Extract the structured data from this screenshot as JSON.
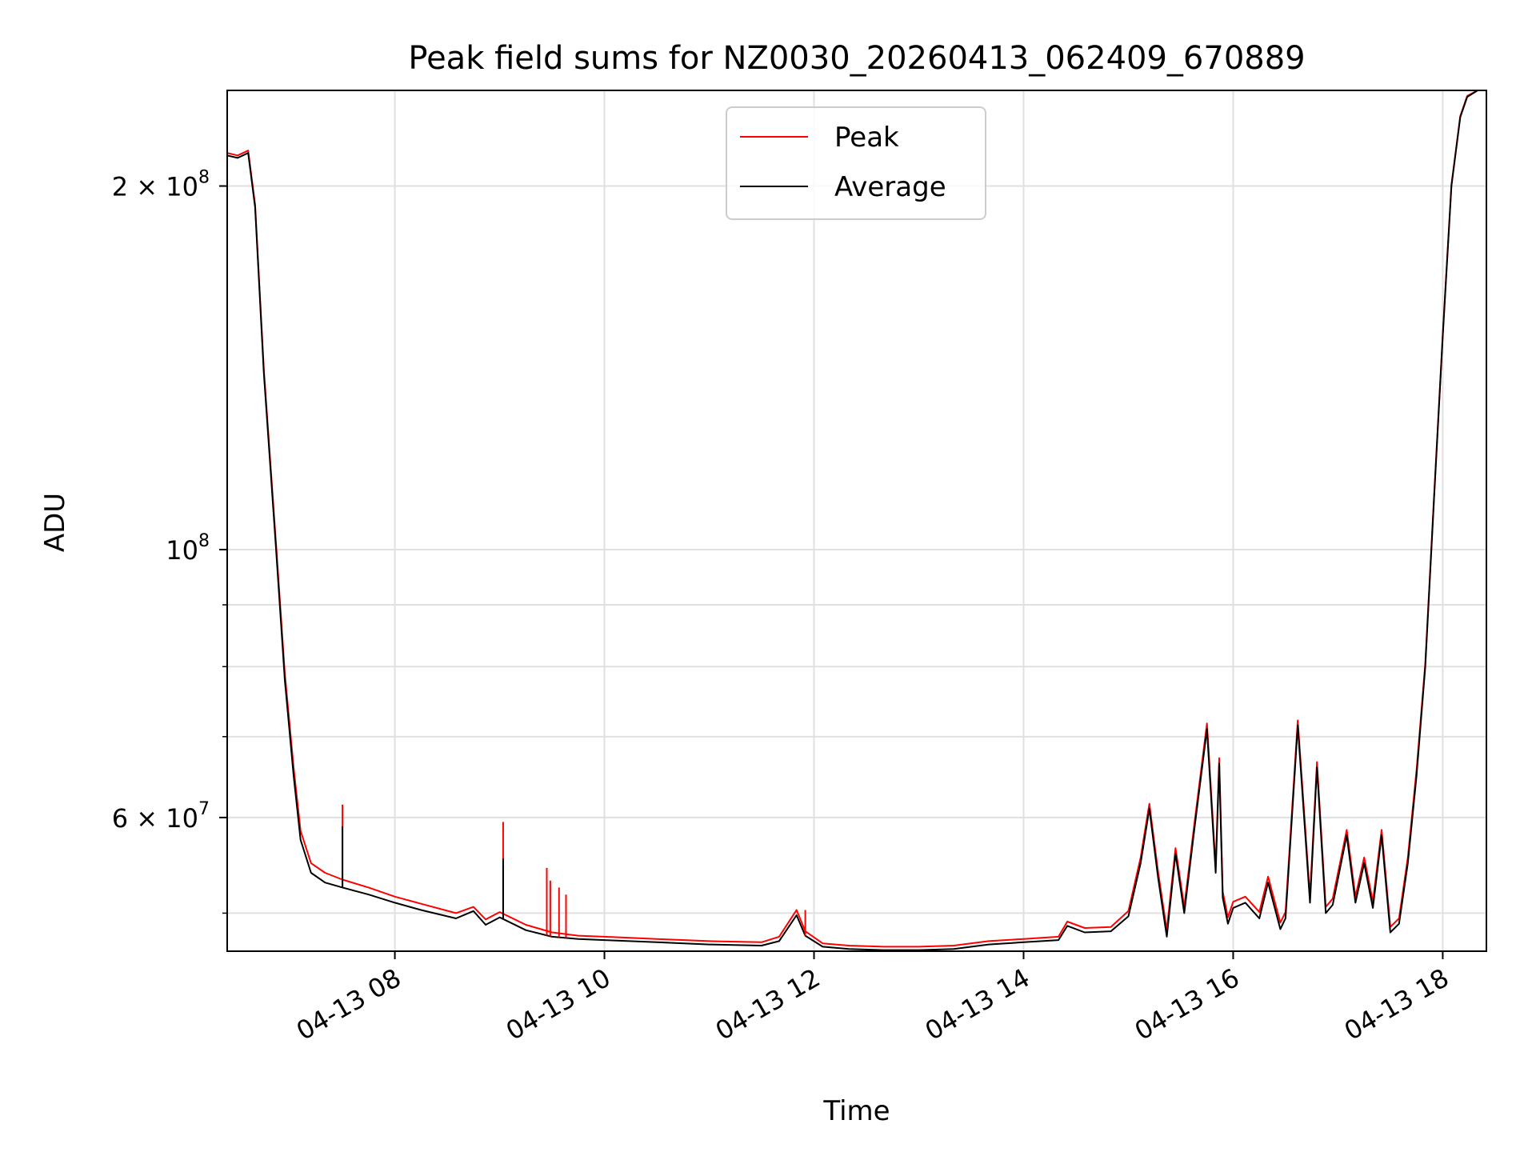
{
  "chart_data": {
    "type": "line",
    "title": "Peak field sums for NZ0030_20260413_062409_670889",
    "xlabel": "Time",
    "ylabel": "ADU",
    "yscale": "log",
    "grid": true,
    "legend_position": "upper-center",
    "xlim": [
      "2026-04-13T06:24",
      "2026-04-13T18:25"
    ],
    "ylim": [
      46500000,
      240000000
    ],
    "x_ticks": [
      {
        "value": "2026-04-13T08:00",
        "label": "04-13 08"
      },
      {
        "value": "2026-04-13T10:00",
        "label": "04-13 10"
      },
      {
        "value": "2026-04-13T12:00",
        "label": "04-13 12"
      },
      {
        "value": "2026-04-13T14:00",
        "label": "04-13 14"
      },
      {
        "value": "2026-04-13T16:00",
        "label": "04-13 16"
      },
      {
        "value": "2026-04-13T18:00",
        "label": "04-13 18"
      }
    ],
    "y_major_ticks": [
      {
        "value": 60000000,
        "mant": "6 × 10",
        "exp": "7"
      },
      {
        "value": 100000000,
        "mant": "10",
        "exp": "8"
      },
      {
        "value": 200000000,
        "mant": "2 × 10",
        "exp": "8"
      }
    ],
    "y_minor_ticks": [
      50000000,
      70000000,
      80000000,
      90000000
    ],
    "series": [
      {
        "name": "Average",
        "color": "#000000",
        "x": [
          "2026-04-13T06:24",
          "2026-04-13T06:30",
          "2026-04-13T06:36",
          "2026-04-13T06:40",
          "2026-04-13T06:45",
          "2026-04-13T06:52",
          "2026-04-13T06:57",
          "2026-04-13T07:02",
          "2026-04-13T07:06",
          "2026-04-13T07:12",
          "2026-04-13T07:20",
          "2026-04-13T07:30",
          "2026-04-13T07:45",
          "2026-04-13T08:00",
          "2026-04-13T08:15",
          "2026-04-13T08:35",
          "2026-04-13T08:45",
          "2026-04-13T08:52",
          "2026-04-13T09:00",
          "2026-04-13T09:15",
          "2026-04-13T09:30",
          "2026-04-13T09:45",
          "2026-04-13T10:00",
          "2026-04-13T10:30",
          "2026-04-13T11:00",
          "2026-04-13T11:30",
          "2026-04-13T11:40",
          "2026-04-13T11:50",
          "2026-04-13T11:55",
          "2026-04-13T12:05",
          "2026-04-13T12:20",
          "2026-04-13T12:40",
          "2026-04-13T13:00",
          "2026-04-13T13:20",
          "2026-04-13T13:40",
          "2026-04-13T14:00",
          "2026-04-13T14:20",
          "2026-04-13T14:25",
          "2026-04-13T14:35",
          "2026-04-13T14:50",
          "2026-04-13T15:00",
          "2026-04-13T15:07",
          "2026-04-13T15:12",
          "2026-04-13T15:17",
          "2026-04-13T15:22",
          "2026-04-13T15:27",
          "2026-04-13T15:32",
          "2026-04-13T15:38",
          "2026-04-13T15:45",
          "2026-04-13T15:50",
          "2026-04-13T15:52",
          "2026-04-13T15:54",
          "2026-04-13T15:57",
          "2026-04-13T16:00",
          "2026-04-13T16:07",
          "2026-04-13T16:15",
          "2026-04-13T16:20",
          "2026-04-13T16:27",
          "2026-04-13T16:30",
          "2026-04-13T16:37",
          "2026-04-13T16:44",
          "2026-04-13T16:48",
          "2026-04-13T16:53",
          "2026-04-13T16:57",
          "2026-04-13T17:05",
          "2026-04-13T17:10",
          "2026-04-13T17:15",
          "2026-04-13T17:20",
          "2026-04-13T17:25",
          "2026-04-13T17:30",
          "2026-04-13T17:35",
          "2026-04-13T17:40",
          "2026-04-13T17:45",
          "2026-04-13T17:50",
          "2026-04-13T17:55",
          "2026-04-13T18:00",
          "2026-04-13T18:05",
          "2026-04-13T18:10",
          "2026-04-13T18:14",
          "2026-04-13T18:20",
          "2026-04-13T18:25"
        ],
        "y": [
          212000000,
          211000000,
          213000000,
          192000000,
          140000000,
          100000000,
          78000000,
          65000000,
          57500000,
          54000000,
          53000000,
          52500000,
          51800000,
          51000000,
          50300000,
          49500000,
          50200000,
          48900000,
          49600000,
          48400000,
          47800000,
          47600000,
          47500000,
          47300000,
          47100000,
          47000000,
          47400000,
          49800000,
          47900000,
          46900000,
          46700000,
          46600000,
          46600000,
          46700000,
          47100000,
          47300000,
          47500000,
          48800000,
          48200000,
          48300000,
          49700000,
          55000000,
          61000000,
          53500000,
          47800000,
          56000000,
          50000000,
          59000000,
          71000000,
          54000000,
          66500000,
          51500000,
          49000000,
          50500000,
          51000000,
          49500000,
          53000000,
          48500000,
          49500000,
          71500000,
          51000000,
          66000000,
          50000000,
          50800000,
          58000000,
          51000000,
          55000000,
          50500000,
          58000000,
          48200000,
          49000000,
          55000000,
          65000000,
          80000000,
          110000000,
          150000000,
          200000000,
          228000000,
          237000000,
          240000000,
          240000000
        ]
      },
      {
        "name": "Peak",
        "color": "#ff0000",
        "x": [
          "2026-04-13T06:24",
          "2026-04-13T06:30",
          "2026-04-13T06:36",
          "2026-04-13T06:40",
          "2026-04-13T06:45",
          "2026-04-13T06:52",
          "2026-04-13T06:57",
          "2026-04-13T07:02",
          "2026-04-13T07:06",
          "2026-04-13T07:12",
          "2026-04-13T07:20",
          "2026-04-13T07:30",
          "2026-04-13T07:45",
          "2026-04-13T08:00",
          "2026-04-13T08:15",
          "2026-04-13T08:35",
          "2026-04-13T08:45",
          "2026-04-13T08:52",
          "2026-04-13T09:00",
          "2026-04-13T09:15",
          "2026-04-13T09:30",
          "2026-04-13T09:45",
          "2026-04-13T10:00",
          "2026-04-13T10:30",
          "2026-04-13T11:00",
          "2026-04-13T11:30",
          "2026-04-13T11:40",
          "2026-04-13T11:50",
          "2026-04-13T11:55",
          "2026-04-13T12:05",
          "2026-04-13T12:20",
          "2026-04-13T12:40",
          "2026-04-13T13:00",
          "2026-04-13T13:20",
          "2026-04-13T13:40",
          "2026-04-13T14:00",
          "2026-04-13T14:20",
          "2026-04-13T14:25",
          "2026-04-13T14:35",
          "2026-04-13T14:50",
          "2026-04-13T15:00",
          "2026-04-13T15:07",
          "2026-04-13T15:12",
          "2026-04-13T15:17",
          "2026-04-13T15:22",
          "2026-04-13T15:27",
          "2026-04-13T15:32",
          "2026-04-13T15:38",
          "2026-04-13T15:45",
          "2026-04-13T15:50",
          "2026-04-13T15:52",
          "2026-04-13T15:54",
          "2026-04-13T15:57",
          "2026-04-13T16:00",
          "2026-04-13T16:07",
          "2026-04-13T16:15",
          "2026-04-13T16:20",
          "2026-04-13T16:27",
          "2026-04-13T16:30",
          "2026-04-13T16:37",
          "2026-04-13T16:44",
          "2026-04-13T16:48",
          "2026-04-13T16:53",
          "2026-04-13T16:57",
          "2026-04-13T17:05",
          "2026-04-13T17:10",
          "2026-04-13T17:15",
          "2026-04-13T17:20",
          "2026-04-13T17:25",
          "2026-04-13T17:30",
          "2026-04-13T17:35",
          "2026-04-13T17:40",
          "2026-04-13T17:45",
          "2026-04-13T17:50",
          "2026-04-13T17:55",
          "2026-04-13T18:00",
          "2026-04-13T18:05",
          "2026-04-13T18:10",
          "2026-04-13T18:14",
          "2026-04-13T18:20",
          "2026-04-13T18:25"
        ],
        "y": [
          213000000,
          212000000,
          214000000,
          193000000,
          141000000,
          101000000,
          79000000,
          66000000,
          58500000,
          55000000,
          54000000,
          53300000,
          52500000,
          51600000,
          50900000,
          50000000,
          50600000,
          49400000,
          50100000,
          48900000,
          48200000,
          47900000,
          47800000,
          47600000,
          47400000,
          47300000,
          47800000,
          50300000,
          48300000,
          47200000,
          47000000,
          46900000,
          46900000,
          47000000,
          47400000,
          47600000,
          47800000,
          49200000,
          48600000,
          48700000,
          50200000,
          55600000,
          61600000,
          54100000,
          48400000,
          56600000,
          50600000,
          59600000,
          71800000,
          54600000,
          67200000,
          52100000,
          49600000,
          51100000,
          51600000,
          50100000,
          53600000,
          49100000,
          50100000,
          72200000,
          51600000,
          66700000,
          50600000,
          51400000,
          58600000,
          51600000,
          55600000,
          51100000,
          58600000,
          48700000,
          49500000,
          55600000,
          65700000,
          80500000,
          110500000,
          150500000,
          200500000,
          228500000,
          237500000,
          240000000,
          240000000
        ]
      }
    ],
    "spikes": [
      {
        "x": "2026-04-13T07:30",
        "peak": 61500000,
        "average": 59000000
      },
      {
        "x": "2026-04-13T09:02",
        "peak": 59500000,
        "average": 55500000
      },
      {
        "x": "2026-04-13T09:27",
        "peak": 54500000
      },
      {
        "x": "2026-04-13T09:29",
        "peak": 53200000
      },
      {
        "x": "2026-04-13T09:34",
        "peak": 52500000
      },
      {
        "x": "2026-04-13T09:38",
        "peak": 51800000
      },
      {
        "x": "2026-04-13T11:55",
        "peak": 50300000
      }
    ]
  }
}
